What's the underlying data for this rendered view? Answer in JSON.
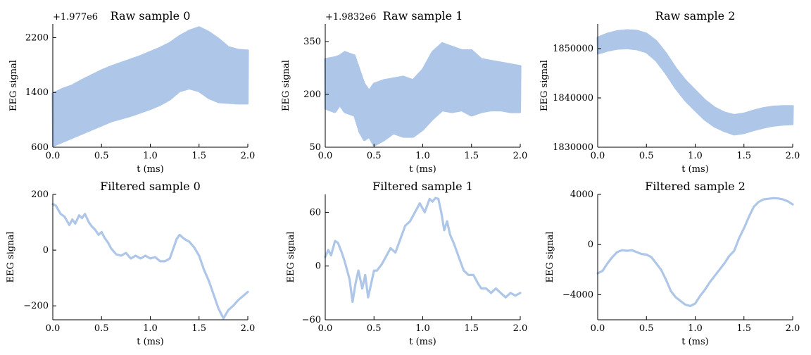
{
  "chart_data": [
    {
      "type": "line",
      "title": "Raw sample 0",
      "xlabel": "t (ms)",
      "ylabel": "EEG signal",
      "offset_text": "+1.977e6",
      "xlim": [
        0,
        2.0
      ],
      "ylim": [
        600,
        2400
      ],
      "xticks": [
        0,
        0.5,
        1.0,
        1.5,
        2.0
      ],
      "xtick_labels": [
        "0.0",
        "0.5",
        "1.0",
        "1.5",
        "2.0"
      ],
      "yticks": [
        600,
        1400,
        2200
      ],
      "ytick_labels": [
        "600",
        "1400",
        "2200"
      ],
      "color": "#aec7e8",
      "style": "band",
      "grid": false,
      "series": [
        {
          "x": [
            0.0,
            0.1,
            0.2,
            0.3,
            0.4,
            0.5,
            0.6,
            0.7,
            0.8,
            0.9,
            1.0,
            1.1,
            1.2,
            1.3,
            1.4,
            1.5,
            1.6,
            1.7,
            1.8,
            1.9,
            2.0
          ],
          "upper": [
            1380,
            1450,
            1500,
            1580,
            1650,
            1720,
            1780,
            1830,
            1880,
            1930,
            1990,
            2050,
            2120,
            2220,
            2300,
            2350,
            2280,
            2180,
            2060,
            2020,
            2010
          ],
          "lower": [
            620,
            680,
            740,
            800,
            860,
            920,
            980,
            1020,
            1060,
            1110,
            1160,
            1220,
            1300,
            1420,
            1460,
            1420,
            1320,
            1260,
            1250,
            1240,
            1240
          ]
        }
      ]
    },
    {
      "type": "line",
      "title": "Raw sample 1",
      "xlabel": "t (ms)",
      "ylabel": "EEG signal",
      "offset_text": "+1.9832e6",
      "xlim": [
        0,
        2.0
      ],
      "ylim": [
        50,
        400
      ],
      "xticks": [
        0,
        0.5,
        1.0,
        1.5,
        2.0
      ],
      "xtick_labels": [
        "0.0",
        "0.5",
        "1.0",
        "1.5",
        "2.0"
      ],
      "yticks": [
        50,
        200,
        350
      ],
      "ytick_labels": [
        "50",
        "200",
        "350"
      ],
      "color": "#aec7e8",
      "style": "band",
      "grid": false,
      "series": [
        {
          "x": [
            0.0,
            0.1,
            0.15,
            0.2,
            0.3,
            0.35,
            0.4,
            0.45,
            0.5,
            0.6,
            0.7,
            0.8,
            0.9,
            1.0,
            1.1,
            1.2,
            1.3,
            1.4,
            1.5,
            1.6,
            1.7,
            1.8,
            1.9,
            2.0
          ],
          "upper": [
            300,
            305,
            310,
            320,
            310,
            270,
            230,
            210,
            230,
            240,
            245,
            250,
            240,
            270,
            320,
            345,
            335,
            325,
            325,
            300,
            295,
            290,
            285,
            280
          ],
          "lower": [
            160,
            150,
            170,
            150,
            140,
            95,
            70,
            80,
            55,
            70,
            90,
            80,
            80,
            100,
            130,
            155,
            150,
            155,
            140,
            150,
            155,
            155,
            150,
            150
          ]
        }
      ]
    },
    {
      "type": "line",
      "title": "Raw sample 2",
      "xlabel": "t (ms)",
      "ylabel": "EEG signal",
      "xlim": [
        0,
        2.0
      ],
      "ylim": [
        1830000,
        1855000
      ],
      "xticks": [
        0,
        0.5,
        1.0,
        1.5,
        2.0
      ],
      "xtick_labels": [
        "0.0",
        "0.5",
        "1.0",
        "1.5",
        "2.0"
      ],
      "yticks": [
        1830000,
        1840000,
        1850000
      ],
      "ytick_labels": [
        "1830000",
        "1840000",
        "1850000"
      ],
      "color": "#aec7e8",
      "style": "band",
      "grid": false,
      "series": [
        {
          "x": [
            0.0,
            0.1,
            0.2,
            0.3,
            0.4,
            0.5,
            0.6,
            0.7,
            0.8,
            0.9,
            1.0,
            1.1,
            1.2,
            1.3,
            1.4,
            1.5,
            1.6,
            1.7,
            1.8,
            1.9,
            2.0
          ],
          "upper": [
            1852200,
            1853000,
            1853500,
            1853700,
            1853600,
            1853000,
            1851500,
            1849000,
            1846000,
            1843500,
            1841500,
            1839500,
            1838000,
            1837000,
            1836500,
            1836800,
            1837400,
            1837900,
            1838200,
            1838300,
            1838300
          ],
          "lower": [
            1849000,
            1849600,
            1850000,
            1850100,
            1849900,
            1849300,
            1847600,
            1845000,
            1842000,
            1839500,
            1837500,
            1835600,
            1834200,
            1833300,
            1832600,
            1832900,
            1833500,
            1834000,
            1834400,
            1834600,
            1834700
          ]
        }
      ]
    },
    {
      "type": "line",
      "title": "Filtered sample 0",
      "xlabel": "t (ms)",
      "ylabel": "EEG signal",
      "xlim": [
        0,
        2.0
      ],
      "ylim": [
        -250,
        200
      ],
      "xticks": [
        0,
        0.5,
        1.0,
        1.5,
        2.0
      ],
      "xtick_labels": [
        "0.0",
        "0.5",
        "1.0",
        "1.5",
        "2.0"
      ],
      "yticks": [
        -200,
        0,
        200
      ],
      "ytick_labels": [
        "−200",
        "0",
        "200"
      ],
      "color": "#aec7e8",
      "style": "line",
      "grid": false,
      "series": [
        {
          "x": [
            0.0,
            0.03,
            0.08,
            0.12,
            0.17,
            0.2,
            0.23,
            0.27,
            0.3,
            0.33,
            0.37,
            0.4,
            0.43,
            0.47,
            0.5,
            0.53,
            0.57,
            0.6,
            0.65,
            0.7,
            0.75,
            0.8,
            0.85,
            0.9,
            0.95,
            1.0,
            1.05,
            1.1,
            1.15,
            1.2,
            1.23,
            1.27,
            1.3,
            1.35,
            1.4,
            1.45,
            1.5,
            1.55,
            1.6,
            1.65,
            1.7,
            1.75,
            1.8,
            1.85,
            1.9,
            1.95,
            2.0
          ],
          "y": [
            165,
            160,
            130,
            120,
            90,
            110,
            95,
            125,
            115,
            130,
            100,
            85,
            75,
            55,
            65,
            45,
            25,
            5,
            -15,
            -20,
            -10,
            -30,
            -20,
            -30,
            -20,
            -30,
            -25,
            -40,
            -40,
            -30,
            0,
            40,
            55,
            40,
            30,
            10,
            -20,
            -70,
            -110,
            -160,
            -210,
            -245,
            -215,
            -200,
            -180,
            -165,
            -150
          ]
        }
      ]
    },
    {
      "type": "line",
      "title": "Filtered sample 1",
      "xlabel": "t (ms)",
      "ylabel": "EEG signal",
      "xlim": [
        0,
        2.0
      ],
      "ylim": [
        -60,
        80
      ],
      "xticks": [
        0,
        0.5,
        1.0,
        1.5,
        2.0
      ],
      "xtick_labels": [
        "0.0",
        "0.5",
        "1.0",
        "1.5",
        "2.0"
      ],
      "yticks": [
        -60,
        0,
        60
      ],
      "ytick_labels": [
        "−60",
        "0",
        "60"
      ],
      "color": "#aec7e8",
      "style": "line",
      "grid": false,
      "series": [
        {
          "x": [
            0.0,
            0.03,
            0.06,
            0.1,
            0.13,
            0.17,
            0.2,
            0.25,
            0.28,
            0.31,
            0.34,
            0.38,
            0.41,
            0.44,
            0.47,
            0.5,
            0.53,
            0.58,
            0.62,
            0.67,
            0.72,
            0.77,
            0.82,
            0.87,
            0.92,
            0.97,
            1.02,
            1.07,
            1.1,
            1.13,
            1.16,
            1.19,
            1.22,
            1.25,
            1.28,
            1.32,
            1.37,
            1.42,
            1.47,
            1.52,
            1.57,
            1.6,
            1.65,
            1.7,
            1.75,
            1.8,
            1.85,
            1.9,
            1.95,
            2.0
          ],
          "y": [
            10,
            18,
            12,
            28,
            26,
            15,
            5,
            -15,
            -40,
            -20,
            -5,
            -25,
            -10,
            -35,
            -20,
            -5,
            -5,
            2,
            10,
            20,
            15,
            30,
            45,
            50,
            60,
            70,
            60,
            75,
            72,
            76,
            75,
            60,
            40,
            50,
            35,
            25,
            10,
            -5,
            -10,
            -10,
            -20,
            -25,
            -25,
            -30,
            -25,
            -30,
            -35,
            -30,
            -33,
            -30
          ]
        }
      ]
    },
    {
      "type": "line",
      "title": "Filtered sample 2",
      "xlabel": "t (ms)",
      "ylabel": "EEG signal",
      "xlim": [
        0,
        2.0
      ],
      "ylim": [
        -6000,
        4000
      ],
      "xticks": [
        0,
        0.5,
        1.0,
        1.5,
        2.0
      ],
      "xtick_labels": [
        "0.0",
        "0.5",
        "1.0",
        "1.5",
        "2.0"
      ],
      "yticks": [
        -4000,
        0,
        4000
      ],
      "ytick_labels": [
        "−4000",
        "0",
        "4000"
      ],
      "color": "#aec7e8",
      "style": "line",
      "grid": false,
      "series": [
        {
          "x": [
            0.0,
            0.05,
            0.1,
            0.15,
            0.2,
            0.25,
            0.3,
            0.35,
            0.4,
            0.45,
            0.5,
            0.55,
            0.6,
            0.65,
            0.7,
            0.75,
            0.8,
            0.85,
            0.9,
            0.95,
            1.0,
            1.05,
            1.1,
            1.15,
            1.2,
            1.25,
            1.3,
            1.35,
            1.4,
            1.45,
            1.5,
            1.55,
            1.6,
            1.65,
            1.7,
            1.75,
            1.8,
            1.85,
            1.9,
            1.95,
            2.0
          ],
          "y": [
            -2300,
            -2100,
            -1500,
            -1000,
            -600,
            -450,
            -500,
            -450,
            -600,
            -750,
            -800,
            -1000,
            -1500,
            -2000,
            -2800,
            -3700,
            -4200,
            -4500,
            -4800,
            -4900,
            -4700,
            -4100,
            -3600,
            -3000,
            -2500,
            -2000,
            -1500,
            -900,
            -500,
            500,
            1300,
            2200,
            3000,
            3400,
            3600,
            3650,
            3700,
            3680,
            3600,
            3450,
            3200
          ]
        }
      ]
    }
  ]
}
